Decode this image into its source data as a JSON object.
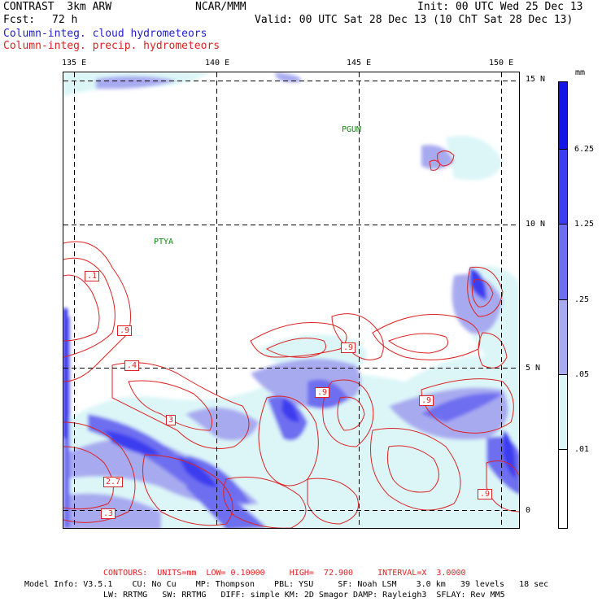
{
  "header": {
    "title": "CONTRAST  3km ARW",
    "org": "NCAR/MMM",
    "init": "Init: 00 UTC Wed 25 Dec 13",
    "fcst_label": "Fcst:",
    "fcst_value": "72 h",
    "valid": "Valid: 00 UTC Sat 28 Dec 13 (10 ChT Sat 28 Dec 13)",
    "field1": "Column-integ. cloud hydrometeors",
    "field2": "Column-integ. precip. hydrometeors"
  },
  "map": {
    "lon_labels": [
      "135 E",
      "140 E",
      "145 E",
      "150 E"
    ],
    "lat_labels": [
      "15 N",
      "10 N",
      "5 N",
      "0"
    ],
    "stations": [
      "PGUM",
      "PTYA"
    ],
    "contour_labels": [
      ".1",
      ".9",
      ".4",
      "3",
      ".9",
      ".9",
      ".9",
      "2.7",
      ".3",
      ".9"
    ]
  },
  "colorbar": {
    "unit": "mm",
    "levels": [
      "6.25",
      "1.25",
      ".25",
      ".05",
      ".01"
    ],
    "colors": [
      "#1414e6",
      "#3c3cf0",
      "#6e6ef0",
      "#a8aaf0",
      "#dcf6f8",
      "#ffffff"
    ]
  },
  "footer": {
    "contours": "CONTOURS:  UNITS=mm  LOW= 0.10000     HIGH=  72.900     INTERVAL=X  3.0000",
    "model_line1": "Model Info: V3.5.1    CU: No Cu    MP: Thompson    PBL: YSU     SF: Noah LSM    3.0 km   39 levels   18 sec",
    "model_line2": "LW: RRTMG   SW: RRTMG   DIFF: simple KM: 2D Smagor DAMP: Rayleigh3  SFLAY: Rev MM5"
  }
}
